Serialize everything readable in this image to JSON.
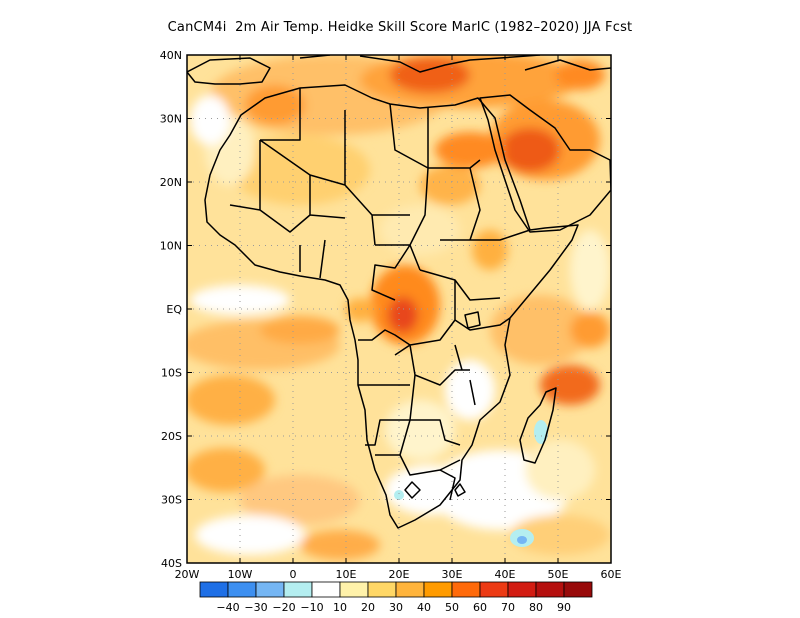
{
  "title": "CanCM4i  2m Air Temp. Heidke Skill Score MarIC (1982–2020) JJA Fcst",
  "chart_data": {
    "type": "heatmap",
    "title": "CanCM4i  2m Air Temp. Heidke Skill Score MarIC (1982–2020) JJA Fcst",
    "region": "Africa",
    "xlim": [
      -20,
      60
    ],
    "ylim": [
      -40,
      40
    ],
    "lon_ticks": [
      {
        "value": -20,
        "label": "20W"
      },
      {
        "value": -10,
        "label": "10W"
      },
      {
        "value": 0,
        "label": "0"
      },
      {
        "value": 10,
        "label": "10E"
      },
      {
        "value": 20,
        "label": "20E"
      },
      {
        "value": 30,
        "label": "30E"
      },
      {
        "value": 40,
        "label": "40E"
      },
      {
        "value": 50,
        "label": "50E"
      },
      {
        "value": 60,
        "label": "60E"
      }
    ],
    "lat_ticks": [
      {
        "value": 40,
        "label": "40N"
      },
      {
        "value": 30,
        "label": "30N"
      },
      {
        "value": 20,
        "label": "20N"
      },
      {
        "value": 10,
        "label": "10N"
      },
      {
        "value": 0,
        "label": "EQ"
      },
      {
        "value": -10,
        "label": "10S"
      },
      {
        "value": -20,
        "label": "20S"
      },
      {
        "value": -30,
        "label": "30S"
      },
      {
        "value": -40,
        "label": "40S"
      }
    ],
    "grid": true,
    "colorbar": {
      "bins": [
        {
          "color": "#1e6fe6"
        },
        {
          "color": "#3d8ff0"
        },
        {
          "color": "#75b6f4"
        },
        {
          "color": "#b4eef0"
        },
        {
          "color": "#ffffff"
        },
        {
          "color": "#fff2aa"
        },
        {
          "color": "#ffd766"
        },
        {
          "color": "#ffb43c"
        },
        {
          "color": "#ff9b00"
        },
        {
          "color": "#ff6a0a"
        },
        {
          "color": "#ec3a14"
        },
        {
          "color": "#d21c12"
        },
        {
          "color": "#b5100e"
        },
        {
          "color": "#980a0a"
        }
      ],
      "labels": [
        "-40",
        "-30",
        "-20",
        "-10",
        "10",
        "20",
        "30",
        "40",
        "50",
        "60",
        "70",
        "80",
        "90"
      ]
    },
    "hotspots": [
      {
        "lon": 20,
        "lat": 0,
        "value": 60
      },
      {
        "lon": 44,
        "lat": 25,
        "value": 60
      },
      {
        "lon": 30,
        "lat": 37,
        "value": 60
      },
      {
        "lon": 50,
        "lat": -14,
        "value": 50
      }
    ]
  }
}
